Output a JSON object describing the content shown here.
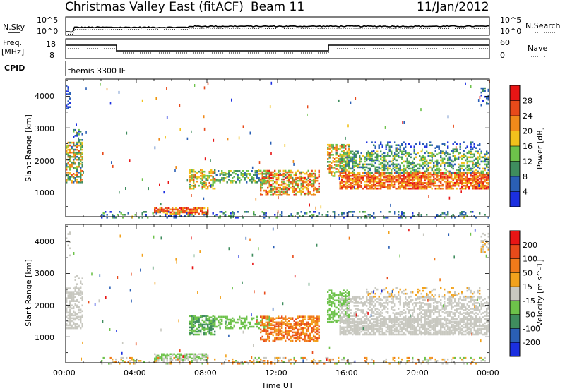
{
  "header": {
    "title": "Christmas Valley East (fitACF)",
    "beam": "Beam 11",
    "date": "11/Jan/2012"
  },
  "top_panels": {
    "nsky_label": "N.Sky",
    "nsearch_label": "N.Search",
    "noise_ticks_left": [
      "10^5",
      "10^0"
    ],
    "noise_ticks_right": [
      "10^5",
      "10^0"
    ],
    "freq_label_1": "Freq.",
    "freq_label_2": "[MHz]",
    "nave_label": "Nave",
    "freq_ticks": [
      "18",
      "8"
    ],
    "nave_ticks": [
      "60",
      "0"
    ],
    "cpid_label": "CPID",
    "cpid_text": "themis 3300 IF"
  },
  "chart_data": [
    {
      "type": "heatmap",
      "name": "power",
      "ylabel": "Slant Range [km]",
      "y_ticks": [
        "4000",
        "3000",
        "2000",
        "1000"
      ],
      "y_range_km": [
        180,
        4550
      ],
      "x_range_hours": [
        0,
        24
      ],
      "colorbar_label": "Power [dB]",
      "colorbar_ticks": [
        "28",
        "24",
        "20",
        "16",
        "12",
        "8",
        "4"
      ],
      "colors": [
        "#1b2fe0",
        "#2a5fb5",
        "#3f8d5e",
        "#6dc24a",
        "#f2c21c",
        "#f08a1a",
        "#e84a1a",
        "#e81515"
      ]
    },
    {
      "type": "heatmap",
      "name": "velocity",
      "ylabel": "Slant Range [km]",
      "y_ticks": [
        "4000",
        "3000",
        "2000",
        "1000"
      ],
      "y_range_km": [
        180,
        4550
      ],
      "x_range_hours": [
        0,
        24
      ],
      "xlabel": "Time UT",
      "x_ticks": [
        "00:00",
        "04:00",
        "08:00",
        "12:00",
        "16:00",
        "20:00",
        "00:00"
      ],
      "colorbar_label": "Velocity [m s^-1]",
      "colorbar_ticks": [
        "200",
        "100",
        "50",
        "15",
        "-15",
        "-50",
        "-100",
        "-200"
      ],
      "colors": [
        "#1b2fe0",
        "#2a5fb5",
        "#3f8d5e",
        "#6dc24a",
        "#c8c8c0",
        "#f2a21c",
        "#f07a1a",
        "#e84a1a",
        "#e81515"
      ]
    }
  ]
}
